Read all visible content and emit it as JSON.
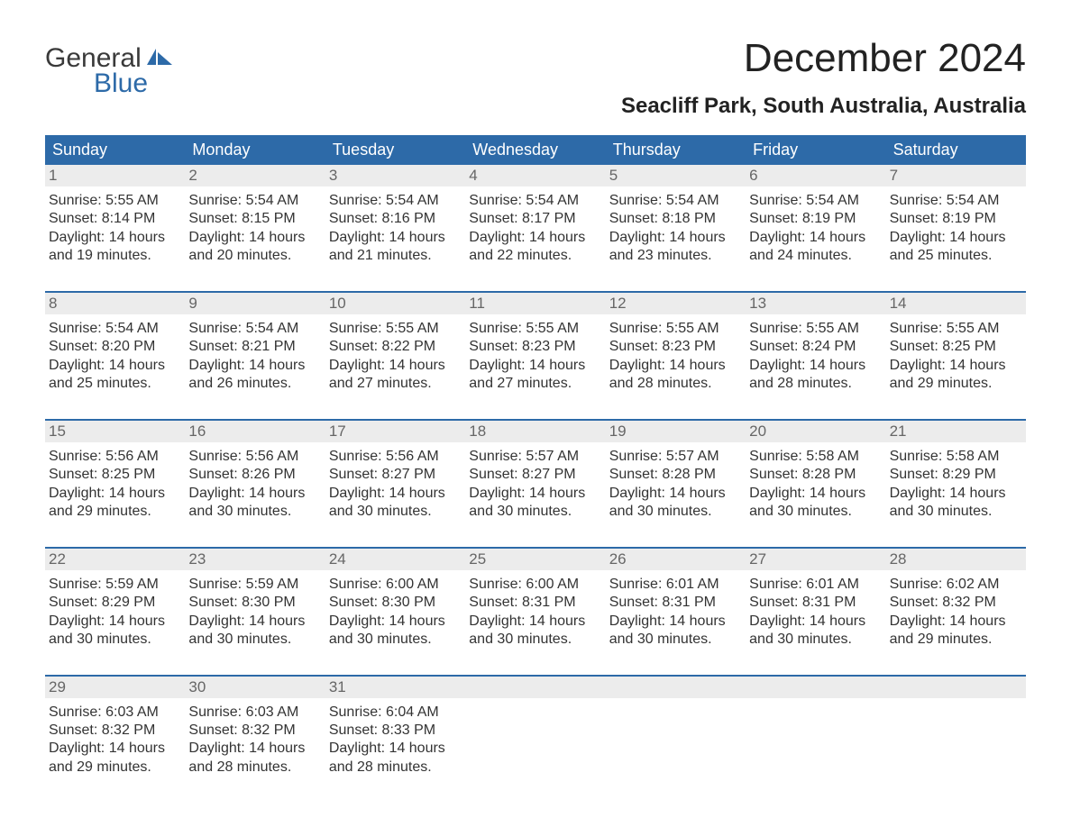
{
  "logo": {
    "word1": "General",
    "word2": "Blue",
    "icon_color": "#2d6aa8",
    "text_color_dark": "#3a3a3a"
  },
  "title": "December 2024",
  "location": "Seacliff Park, South Australia, Australia",
  "colors": {
    "header_bg": "#2d6aa8",
    "header_text": "#ffffff",
    "daynum_bg": "#ececec",
    "daynum_text": "#666666",
    "body_text": "#333333",
    "rule": "#2d6aa8",
    "page_bg": "#ffffff"
  },
  "day_names": [
    "Sunday",
    "Monday",
    "Tuesday",
    "Wednesday",
    "Thursday",
    "Friday",
    "Saturday"
  ],
  "weeks": [
    [
      {
        "n": "1",
        "sr": "Sunrise: 5:55 AM",
        "ss": "Sunset: 8:14 PM",
        "d1": "Daylight: 14 hours",
        "d2": "and 19 minutes."
      },
      {
        "n": "2",
        "sr": "Sunrise: 5:54 AM",
        "ss": "Sunset: 8:15 PM",
        "d1": "Daylight: 14 hours",
        "d2": "and 20 minutes."
      },
      {
        "n": "3",
        "sr": "Sunrise: 5:54 AM",
        "ss": "Sunset: 8:16 PM",
        "d1": "Daylight: 14 hours",
        "d2": "and 21 minutes."
      },
      {
        "n": "4",
        "sr": "Sunrise: 5:54 AM",
        "ss": "Sunset: 8:17 PM",
        "d1": "Daylight: 14 hours",
        "d2": "and 22 minutes."
      },
      {
        "n": "5",
        "sr": "Sunrise: 5:54 AM",
        "ss": "Sunset: 8:18 PM",
        "d1": "Daylight: 14 hours",
        "d2": "and 23 minutes."
      },
      {
        "n": "6",
        "sr": "Sunrise: 5:54 AM",
        "ss": "Sunset: 8:19 PM",
        "d1": "Daylight: 14 hours",
        "d2": "and 24 minutes."
      },
      {
        "n": "7",
        "sr": "Sunrise: 5:54 AM",
        "ss": "Sunset: 8:19 PM",
        "d1": "Daylight: 14 hours",
        "d2": "and 25 minutes."
      }
    ],
    [
      {
        "n": "8",
        "sr": "Sunrise: 5:54 AM",
        "ss": "Sunset: 8:20 PM",
        "d1": "Daylight: 14 hours",
        "d2": "and 25 minutes."
      },
      {
        "n": "9",
        "sr": "Sunrise: 5:54 AM",
        "ss": "Sunset: 8:21 PM",
        "d1": "Daylight: 14 hours",
        "d2": "and 26 minutes."
      },
      {
        "n": "10",
        "sr": "Sunrise: 5:55 AM",
        "ss": "Sunset: 8:22 PM",
        "d1": "Daylight: 14 hours",
        "d2": "and 27 minutes."
      },
      {
        "n": "11",
        "sr": "Sunrise: 5:55 AM",
        "ss": "Sunset: 8:23 PM",
        "d1": "Daylight: 14 hours",
        "d2": "and 27 minutes."
      },
      {
        "n": "12",
        "sr": "Sunrise: 5:55 AM",
        "ss": "Sunset: 8:23 PM",
        "d1": "Daylight: 14 hours",
        "d2": "and 28 minutes."
      },
      {
        "n": "13",
        "sr": "Sunrise: 5:55 AM",
        "ss": "Sunset: 8:24 PM",
        "d1": "Daylight: 14 hours",
        "d2": "and 28 minutes."
      },
      {
        "n": "14",
        "sr": "Sunrise: 5:55 AM",
        "ss": "Sunset: 8:25 PM",
        "d1": "Daylight: 14 hours",
        "d2": "and 29 minutes."
      }
    ],
    [
      {
        "n": "15",
        "sr": "Sunrise: 5:56 AM",
        "ss": "Sunset: 8:25 PM",
        "d1": "Daylight: 14 hours",
        "d2": "and 29 minutes."
      },
      {
        "n": "16",
        "sr": "Sunrise: 5:56 AM",
        "ss": "Sunset: 8:26 PM",
        "d1": "Daylight: 14 hours",
        "d2": "and 30 minutes."
      },
      {
        "n": "17",
        "sr": "Sunrise: 5:56 AM",
        "ss": "Sunset: 8:27 PM",
        "d1": "Daylight: 14 hours",
        "d2": "and 30 minutes."
      },
      {
        "n": "18",
        "sr": "Sunrise: 5:57 AM",
        "ss": "Sunset: 8:27 PM",
        "d1": "Daylight: 14 hours",
        "d2": "and 30 minutes."
      },
      {
        "n": "19",
        "sr": "Sunrise: 5:57 AM",
        "ss": "Sunset: 8:28 PM",
        "d1": "Daylight: 14 hours",
        "d2": "and 30 minutes."
      },
      {
        "n": "20",
        "sr": "Sunrise: 5:58 AM",
        "ss": "Sunset: 8:28 PM",
        "d1": "Daylight: 14 hours",
        "d2": "and 30 minutes."
      },
      {
        "n": "21",
        "sr": "Sunrise: 5:58 AM",
        "ss": "Sunset: 8:29 PM",
        "d1": "Daylight: 14 hours",
        "d2": "and 30 minutes."
      }
    ],
    [
      {
        "n": "22",
        "sr": "Sunrise: 5:59 AM",
        "ss": "Sunset: 8:29 PM",
        "d1": "Daylight: 14 hours",
        "d2": "and 30 minutes."
      },
      {
        "n": "23",
        "sr": "Sunrise: 5:59 AM",
        "ss": "Sunset: 8:30 PM",
        "d1": "Daylight: 14 hours",
        "d2": "and 30 minutes."
      },
      {
        "n": "24",
        "sr": "Sunrise: 6:00 AM",
        "ss": "Sunset: 8:30 PM",
        "d1": "Daylight: 14 hours",
        "d2": "and 30 minutes."
      },
      {
        "n": "25",
        "sr": "Sunrise: 6:00 AM",
        "ss": "Sunset: 8:31 PM",
        "d1": "Daylight: 14 hours",
        "d2": "and 30 minutes."
      },
      {
        "n": "26",
        "sr": "Sunrise: 6:01 AM",
        "ss": "Sunset: 8:31 PM",
        "d1": "Daylight: 14 hours",
        "d2": "and 30 minutes."
      },
      {
        "n": "27",
        "sr": "Sunrise: 6:01 AM",
        "ss": "Sunset: 8:31 PM",
        "d1": "Daylight: 14 hours",
        "d2": "and 30 minutes."
      },
      {
        "n": "28",
        "sr": "Sunrise: 6:02 AM",
        "ss": "Sunset: 8:32 PM",
        "d1": "Daylight: 14 hours",
        "d2": "and 29 minutes."
      }
    ],
    [
      {
        "n": "29",
        "sr": "Sunrise: 6:03 AM",
        "ss": "Sunset: 8:32 PM",
        "d1": "Daylight: 14 hours",
        "d2": "and 29 minutes."
      },
      {
        "n": "30",
        "sr": "Sunrise: 6:03 AM",
        "ss": "Sunset: 8:32 PM",
        "d1": "Daylight: 14 hours",
        "d2": "and 28 minutes."
      },
      {
        "n": "31",
        "sr": "Sunrise: 6:04 AM",
        "ss": "Sunset: 8:33 PM",
        "d1": "Daylight: 14 hours",
        "d2": "and 28 minutes."
      },
      null,
      null,
      null,
      null
    ]
  ]
}
